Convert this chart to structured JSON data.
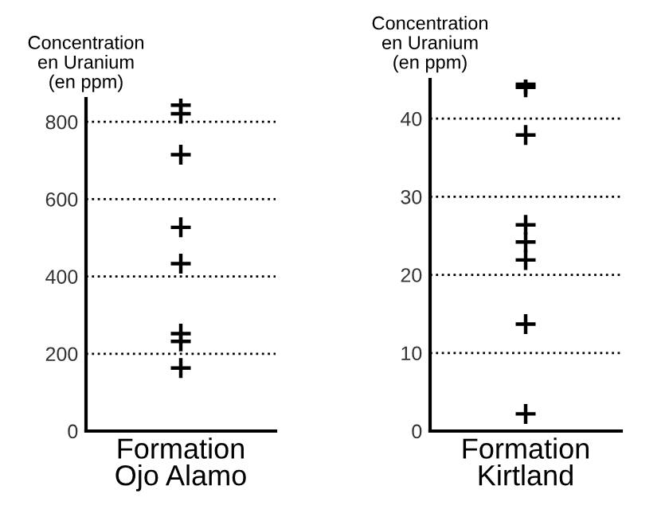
{
  "chart_data": [
    {
      "type": "scatter",
      "ylabel": "Concentration\nen Uranium\n(en ppm)",
      "categories": [
        "Formation\nOjo Alamo"
      ],
      "marker": "cross",
      "grid": "y",
      "line_style": "dotted",
      "series": [
        {
          "color": "#000000",
          "x": [
            "Formation\nOjo Alamo",
            "Formation\nOjo Alamo",
            "Formation\nOjo Alamo",
            "Formation\nOjo Alamo",
            "Formation\nOjo Alamo",
            "Formation\nOjo Alamo",
            "Formation\nOjo Alamo",
            "Formation\nOjo Alamo"
          ],
          "values": [
            843,
            821,
            715,
            527,
            433,
            252,
            232,
            163
          ]
        }
      ],
      "ylim": [
        0,
        860
      ],
      "yticks": [
        0,
        200,
        400,
        600,
        800
      ]
    },
    {
      "type": "scatter",
      "ylabel": "Concentration\nen Uranium\n(en ppm)",
      "categories": [
        "Formation\nKirtland"
      ],
      "marker": "cross",
      "grid": "y",
      "line_style": "dotted",
      "series": [
        {
          "color": "#000000",
          "x": [
            "Formation\nKirtland",
            "Formation\nKirtland",
            "Formation\nKirtland",
            "Formation\nKirtland",
            "Formation\nKirtland",
            "Formation\nKirtland",
            "Formation\nKirtland",
            "Formation\nKirtland"
          ],
          "values": [
            44.4,
            44.0,
            37.9,
            26.4,
            24.2,
            21.9,
            13.7,
            2.2
          ]
        }
      ],
      "ylim": [
        0,
        45
      ],
      "yticks": [
        0,
        10,
        20,
        30,
        40
      ]
    }
  ]
}
